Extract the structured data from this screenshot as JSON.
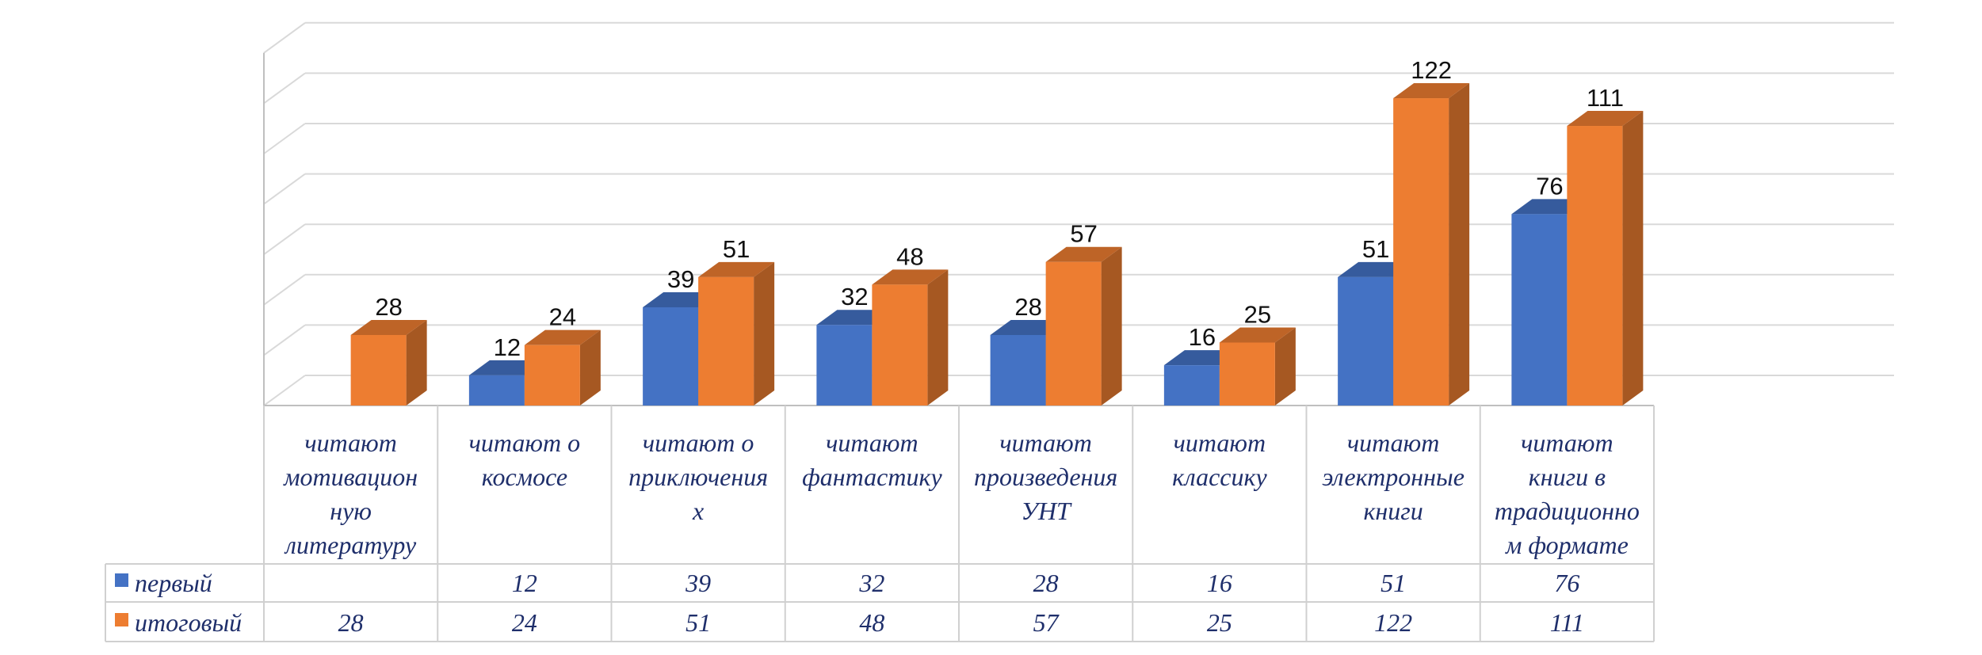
{
  "chart_data": {
    "type": "bar",
    "title": "",
    "xlabel": "",
    "ylabel": "",
    "categories": [
      [
        "читают",
        "мотивацион",
        "ную",
        "литературу"
      ],
      [
        "читают о",
        "космосе"
      ],
      [
        "читают о",
        "приключения",
        "х"
      ],
      [
        "читают",
        "фантастику"
      ],
      [
        "читают",
        "произведения",
        "УНТ"
      ],
      [
        "читают",
        "классику"
      ],
      [
        "читают",
        "электронные",
        "книги"
      ],
      [
        "читают",
        "книги в",
        "традиционно",
        "м формате"
      ]
    ],
    "series": [
      {
        "name": "первый",
        "color": "#4472C4",
        "values": [
          null,
          12,
          39,
          32,
          28,
          16,
          51,
          76
        ]
      },
      {
        "name": "итоговый",
        "color": "#ED7D31",
        "values": [
          28,
          24,
          51,
          48,
          57,
          25,
          122,
          111
        ]
      }
    ],
    "ylim": [
      0,
      140
    ],
    "grid": true,
    "three_d": true,
    "data_table": true,
    "legend": "data-table"
  }
}
